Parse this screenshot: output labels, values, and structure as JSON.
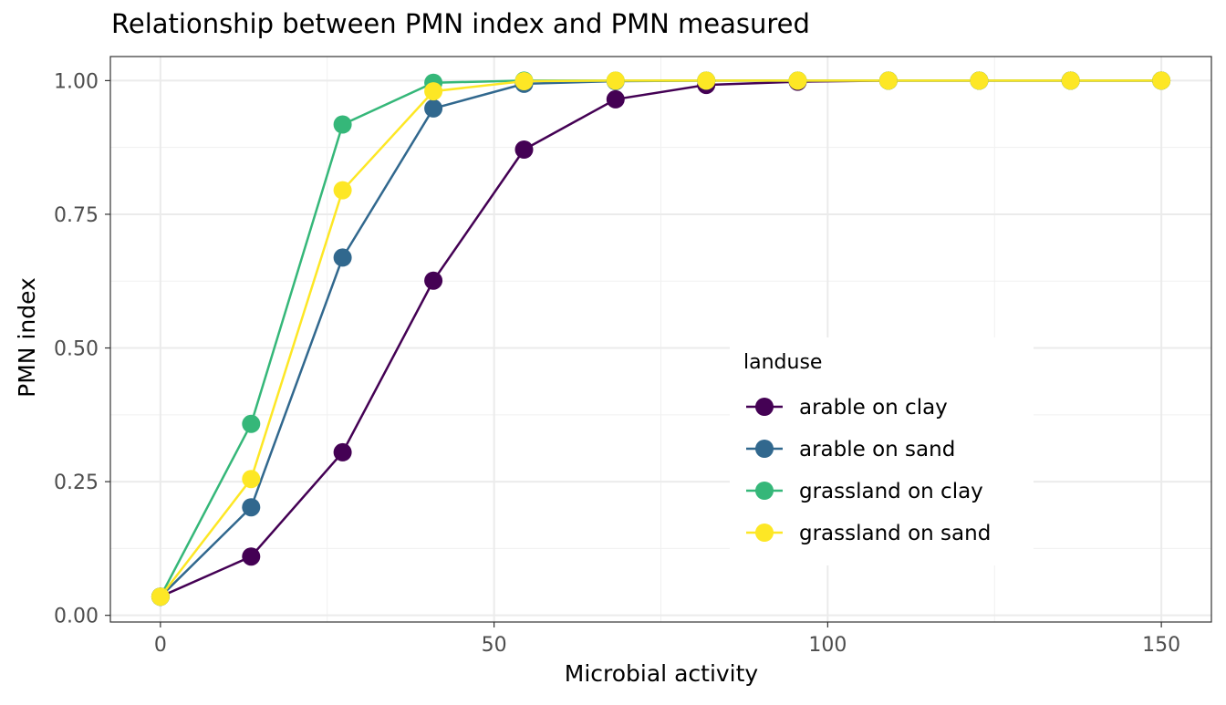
{
  "chart_data": {
    "type": "line",
    "title": "Relationship between PMN index and PMN measured",
    "xlabel": "Microbial activity",
    "ylabel": "PMN index",
    "xlim": [
      -7.5,
      157.5
    ],
    "ylim": [
      -0.0125,
      1.045
    ],
    "x_ticks": [
      0,
      50,
      100,
      150
    ],
    "x_tick_labels": [
      "0",
      "50",
      "100",
      "150"
    ],
    "y_ticks": [
      0,
      0.25,
      0.5,
      0.75,
      1.0
    ],
    "y_tick_labels": [
      "0.00",
      "0.25",
      "0.50",
      "0.75",
      "1.00"
    ],
    "grid": true,
    "legend": {
      "title": "landuse",
      "position": "inside-right"
    },
    "x": [
      0,
      13.6,
      27.3,
      40.9,
      54.5,
      68.2,
      81.8,
      95.5,
      109.1,
      122.7,
      136.4,
      150
    ],
    "series": [
      {
        "name": "arable on clay",
        "color": "#440154",
        "values": [
          0.035,
          0.11,
          0.305,
          0.626,
          0.871,
          0.965,
          0.992,
          0.998,
          1.0,
          1.0,
          1.0,
          1.0
        ]
      },
      {
        "name": "arable on sand",
        "color": "#31688E",
        "values": [
          0.035,
          0.202,
          0.669,
          0.948,
          0.994,
          0.999,
          1.0,
          1.0,
          1.0,
          1.0,
          1.0,
          1.0
        ]
      },
      {
        "name": "grassland on clay",
        "color": "#35B779",
        "values": [
          0.035,
          0.358,
          0.918,
          0.996,
          1.0,
          1.0,
          1.0,
          1.0,
          1.0,
          1.0,
          1.0,
          1.0
        ]
      },
      {
        "name": "grassland on sand",
        "color": "#FDE725",
        "values": [
          0.035,
          0.255,
          0.795,
          0.98,
          0.999,
          1.0,
          1.0,
          1.0,
          1.0,
          1.0,
          1.0,
          1.0
        ]
      }
    ]
  }
}
